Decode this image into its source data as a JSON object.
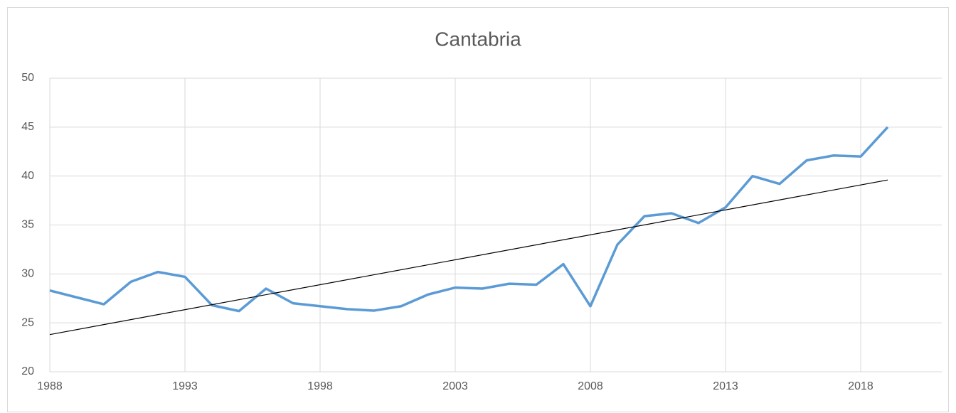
{
  "chart_data": {
    "type": "line",
    "title": "Cantabria",
    "x": [
      1988,
      1989,
      1990,
      1991,
      1992,
      1993,
      1994,
      1995,
      1996,
      1997,
      1998,
      1999,
      2000,
      2001,
      2002,
      2003,
      2004,
      2005,
      2006,
      2007,
      2008,
      2009,
      2010,
      2011,
      2012,
      2013,
      2014,
      2015,
      2016,
      2017,
      2018,
      2019
    ],
    "series": [
      {
        "color": "#5b9bd5",
        "values": [
          28.3,
          27.6,
          26.9,
          29.2,
          30.2,
          29.7,
          26.8,
          26.2,
          28.5,
          27.0,
          26.7,
          26.4,
          26.25,
          26.7,
          27.9,
          28.6,
          28.5,
          29.0,
          28.9,
          31.0,
          26.7,
          33.0,
          35.9,
          36.2,
          35.2,
          36.8,
          40.0,
          39.2,
          41.6,
          42.1,
          42.0,
          45.0
        ]
      }
    ],
    "trend": {
      "x": [
        1988,
        2019
      ],
      "values": [
        23.8,
        39.6
      ],
      "color": "#000000"
    },
    "xlim": [
      1988,
      2021
    ],
    "xticks": [
      1988,
      1993,
      1998,
      2003,
      2008,
      2013,
      2018
    ],
    "ylim": [
      20,
      50
    ],
    "yticks": [
      20,
      25,
      30,
      35,
      40,
      45,
      50
    ],
    "grid": true
  }
}
